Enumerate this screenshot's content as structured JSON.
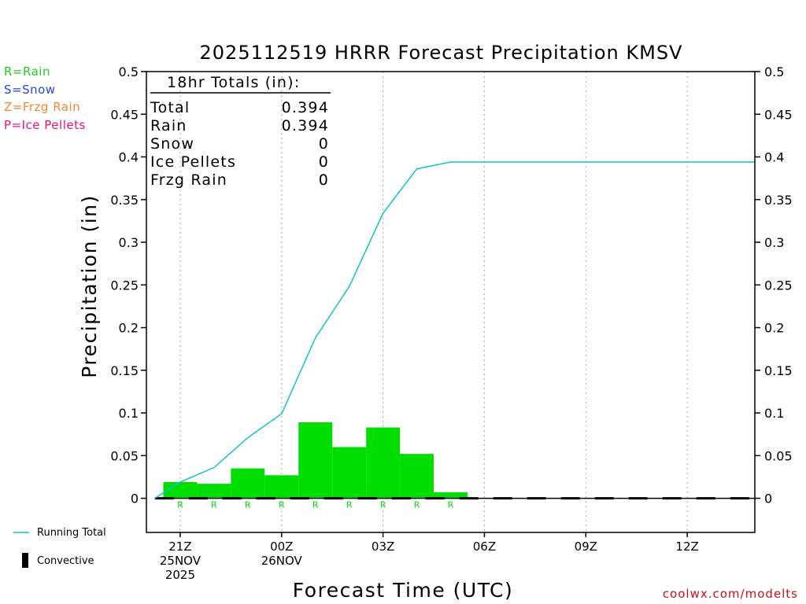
{
  "chart_data": {
    "type": "bar+line",
    "title": "2025112519 HRRR Forecast Precipitation KMSV",
    "xlabel": "Forecast Time (UTC)",
    "ylabel": "Precipitation (in)",
    "ylim": [
      -0.04,
      0.5
    ],
    "yticks": [
      0,
      0.05,
      0.1,
      0.15,
      0.2,
      0.25,
      0.3,
      0.35,
      0.4,
      0.45,
      0.5
    ],
    "ytick_labels": [
      "0",
      "0.05",
      "0.1",
      "0.15",
      "0.2",
      "0.25",
      "0.3",
      "0.35",
      "0.4",
      "0.45",
      "0.5"
    ],
    "x_unit": "hours since 2025-11-25 19Z",
    "xlim": [
      0,
      18
    ],
    "xticks": [
      {
        "hour": 1,
        "lines": [
          "21Z",
          "25NOV",
          "2025"
        ]
      },
      {
        "hour": 4,
        "lines": [
          "00Z",
          "26NOV"
        ]
      },
      {
        "hour": 7,
        "lines": [
          "03Z"
        ]
      },
      {
        "hour": 10,
        "lines": [
          "06Z"
        ]
      },
      {
        "hour": 13,
        "lines": [
          "09Z"
        ]
      },
      {
        "hour": 16,
        "lines": [
          "12Z"
        ]
      }
    ],
    "series": [
      {
        "name": "Hourly Rain",
        "kind": "bar",
        "color": "#00dd00",
        "hours": [
          1,
          2,
          3,
          4,
          5,
          6,
          7,
          8,
          9
        ],
        "values": [
          0.019,
          0.017,
          0.035,
          0.027,
          0.089,
          0.06,
          0.083,
          0.052,
          0.007
        ],
        "ptype_labels": [
          "R",
          "R",
          "R",
          "R",
          "R",
          "R",
          "R",
          "R",
          "R"
        ]
      },
      {
        "name": "Running Total",
        "kind": "line",
        "color": "#11c4cc",
        "x": [
          0.25,
          1,
          2,
          3,
          4,
          5,
          6,
          7,
          8,
          9,
          10,
          11,
          12,
          13,
          14,
          15,
          16,
          17,
          18
        ],
        "values": [
          0,
          0.019,
          0.036,
          0.071,
          0.099,
          0.188,
          0.248,
          0.334,
          0.386,
          0.394,
          0.394,
          0.394,
          0.394,
          0.394,
          0.394,
          0.394,
          0.394,
          0.394,
          0.394
        ]
      }
    ],
    "totals_box": {
      "title": "18hr Totals (in):",
      "rows": [
        {
          "label": "Total",
          "value": "0.394"
        },
        {
          "label": "Rain",
          "value": "0.394"
        },
        {
          "label": "Snow",
          "value": "0"
        },
        {
          "label": "Ice Pellets",
          "value": "0"
        },
        {
          "label": "Frzg Rain",
          "value": "0"
        }
      ]
    }
  },
  "ptype_key": [
    {
      "text": "R=Rain",
      "color": "#22cc22"
    },
    {
      "text": "S=Snow",
      "color": "#2244ee"
    },
    {
      "text": "Z=Frzg Rain",
      "color": "#ee8833"
    },
    {
      "text": "P=Ice Pellets",
      "color": "#ee1177"
    }
  ],
  "legend": {
    "running_total": "Running Total",
    "convective": "Convective",
    "running_total_color": "#11c4cc"
  },
  "credit": "coolwx.com/modelts"
}
